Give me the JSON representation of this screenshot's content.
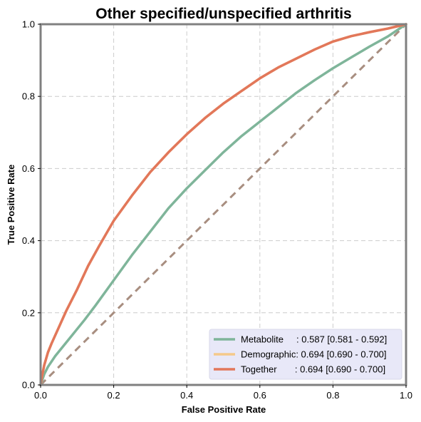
{
  "chart_data": {
    "type": "line",
    "title": "Other specified/unspecified arthritis",
    "xlabel": "False Positive Rate",
    "ylabel": "True Positive Rate",
    "xlim": [
      0,
      1
    ],
    "ylim": [
      0,
      1
    ],
    "xticks": [
      0.0,
      0.2,
      0.4,
      0.6,
      0.8,
      1.0
    ],
    "yticks": [
      0.0,
      0.2,
      0.4,
      0.6,
      0.8,
      1.0
    ],
    "xtick_labels": [
      "0.0",
      "0.2",
      "0.4",
      "0.6",
      "0.8",
      "1.0"
    ],
    "ytick_labels": [
      "0.0",
      "0.2",
      "0.4",
      "0.6",
      "0.8",
      "1.0"
    ],
    "grid": true,
    "legend_position": "bottom-right",
    "series": [
      {
        "name": "Metabolite",
        "legend_label": "Metabolite     : 0.587 [0.581 - 0.592]",
        "color": "#7fb59a",
        "x": [
          0,
          0.01,
          0.02,
          0.04,
          0.06,
          0.08,
          0.1,
          0.12,
          0.15,
          0.2,
          0.25,
          0.3,
          0.35,
          0.4,
          0.45,
          0.5,
          0.55,
          0.6,
          0.65,
          0.7,
          0.75,
          0.8,
          0.85,
          0.9,
          0.95,
          1.0
        ],
        "y": [
          0,
          0.03,
          0.05,
          0.08,
          0.105,
          0.13,
          0.155,
          0.18,
          0.22,
          0.29,
          0.36,
          0.425,
          0.49,
          0.545,
          0.595,
          0.645,
          0.69,
          0.73,
          0.77,
          0.81,
          0.845,
          0.878,
          0.908,
          0.938,
          0.966,
          1.0
        ]
      },
      {
        "name": "Demographic",
        "legend_label": "Demographic: 0.694 [0.690 - 0.700]",
        "color": "#f5c98a",
        "x": [
          0,
          0.005,
          0.01,
          0.02,
          0.03,
          0.05,
          0.07,
          0.1,
          0.13,
          0.16,
          0.2,
          0.25,
          0.3,
          0.35,
          0.4,
          0.45,
          0.5,
          0.55,
          0.6,
          0.65,
          0.7,
          0.75,
          0.8,
          0.85,
          0.9,
          0.95,
          1.0
        ],
        "y": [
          0,
          0.03,
          0.055,
          0.09,
          0.115,
          0.16,
          0.205,
          0.265,
          0.33,
          0.385,
          0.455,
          0.525,
          0.59,
          0.645,
          0.695,
          0.74,
          0.78,
          0.815,
          0.85,
          0.88,
          0.905,
          0.93,
          0.952,
          0.967,
          0.978,
          0.988,
          1.0
        ]
      },
      {
        "name": "Together",
        "legend_label": "Together       : 0.694 [0.690 - 0.700]",
        "color": "#e2775a",
        "x": [
          0,
          0.005,
          0.01,
          0.02,
          0.03,
          0.05,
          0.07,
          0.1,
          0.13,
          0.16,
          0.2,
          0.25,
          0.3,
          0.35,
          0.4,
          0.45,
          0.5,
          0.55,
          0.6,
          0.65,
          0.7,
          0.75,
          0.8,
          0.85,
          0.9,
          0.95,
          1.0
        ],
        "y": [
          0,
          0.03,
          0.055,
          0.09,
          0.115,
          0.16,
          0.205,
          0.265,
          0.33,
          0.385,
          0.455,
          0.525,
          0.59,
          0.645,
          0.695,
          0.74,
          0.78,
          0.815,
          0.85,
          0.88,
          0.905,
          0.93,
          0.952,
          0.967,
          0.978,
          0.988,
          1.0
        ]
      }
    ],
    "reference_line": {
      "x": [
        0,
        1
      ],
      "y": [
        0,
        1
      ],
      "color": "#a88e80",
      "style": "dashed"
    },
    "colors": {
      "grid": "#cccccc",
      "frame": "#808080",
      "legend_background": "#e8e8f8"
    }
  }
}
